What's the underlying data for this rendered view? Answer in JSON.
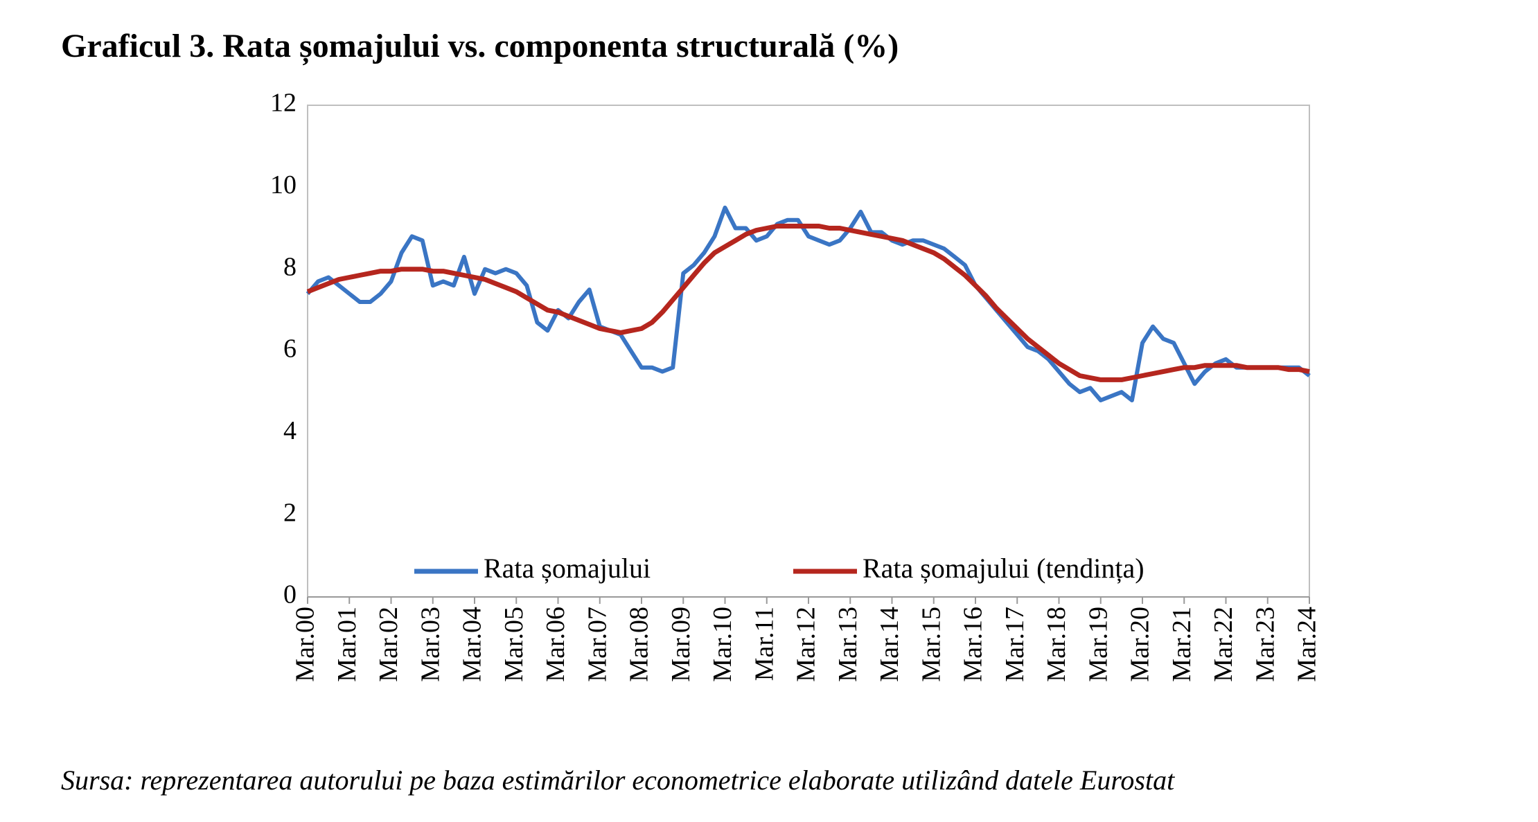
{
  "chart_data": {
    "type": "line",
    "title": "Graficul 3. Rata șomajului vs. componenta structurală (%)",
    "source": "Sursa: reprezentarea autorului pe baza estimărilor econometrice elaborate utilizând datele Eurostat",
    "categories": [
      "Mar.00",
      null,
      null,
      null,
      "Mar.01",
      null,
      null,
      null,
      "Mar.02",
      null,
      null,
      null,
      "Mar.03",
      null,
      null,
      null,
      "Mar.04",
      null,
      null,
      null,
      "Mar.05",
      null,
      null,
      null,
      "Mar.06",
      null,
      null,
      null,
      "Mar.07",
      null,
      null,
      null,
      "Mar.08",
      null,
      null,
      null,
      "Mar.09",
      null,
      null,
      null,
      "Mar.10",
      null,
      null,
      null,
      "Mar.11",
      null,
      null,
      null,
      "Mar.12",
      null,
      null,
      null,
      "Mar.13",
      null,
      null,
      null,
      "Mar.14",
      null,
      null,
      null,
      "Mar.15",
      null,
      null,
      null,
      "Mar.16",
      null,
      null,
      null,
      "Mar.17",
      null,
      null,
      null,
      "Mar.18",
      null,
      null,
      null,
      "Mar.19",
      null,
      null,
      null,
      "Mar.20",
      null,
      null,
      null,
      "Mar.21",
      null,
      null,
      null,
      "Mar.22",
      null,
      null,
      null,
      "Mar.23",
      null,
      null,
      null,
      "Mar.24"
    ],
    "series": [
      {
        "name": "Rata șomajului",
        "color": "#3a75c4",
        "values": [
          7.4,
          7.7,
          7.8,
          7.6,
          7.4,
          7.2,
          7.2,
          7.4,
          7.7,
          8.4,
          8.8,
          8.7,
          7.6,
          7.7,
          7.6,
          8.3,
          7.4,
          8.0,
          7.9,
          8.0,
          7.9,
          7.6,
          6.7,
          6.5,
          7.0,
          6.8,
          7.2,
          7.5,
          6.6,
          6.5,
          6.4,
          6.0,
          5.6,
          5.6,
          5.5,
          5.6,
          7.9,
          8.1,
          8.4,
          8.8,
          9.5,
          9.0,
          9.0,
          8.7,
          8.8,
          9.1,
          9.2,
          9.2,
          8.8,
          8.7,
          8.6,
          8.7,
          9.0,
          9.4,
          8.9,
          8.9,
          8.7,
          8.6,
          8.7,
          8.7,
          8.6,
          8.5,
          8.3,
          8.1,
          7.6,
          7.3,
          7.0,
          6.7,
          6.4,
          6.1,
          6.0,
          5.8,
          5.5,
          5.2,
          5.0,
          5.1,
          4.8,
          4.9,
          5.0,
          4.8,
          6.2,
          6.6,
          6.3,
          6.2,
          5.7,
          5.2,
          5.5,
          5.7,
          5.8,
          5.6,
          5.6,
          5.6,
          5.6,
          5.6,
          5.6,
          5.6,
          5.4
        ]
      },
      {
        "name": "Rata șomajului (tendința)",
        "color": "#b5261e",
        "values": [
          7.45,
          7.55,
          7.65,
          7.75,
          7.8,
          7.85,
          7.9,
          7.95,
          7.95,
          8.0,
          8.0,
          8.0,
          7.95,
          7.95,
          7.9,
          7.85,
          7.8,
          7.75,
          7.65,
          7.55,
          7.45,
          7.3,
          7.15,
          7.0,
          6.95,
          6.85,
          6.75,
          6.65,
          6.55,
          6.5,
          6.45,
          6.5,
          6.55,
          6.7,
          6.95,
          7.25,
          7.55,
          7.85,
          8.15,
          8.4,
          8.55,
          8.7,
          8.85,
          8.95,
          9.0,
          9.05,
          9.05,
          9.05,
          9.05,
          9.05,
          9.0,
          9.0,
          8.95,
          8.9,
          8.85,
          8.8,
          8.75,
          8.7,
          8.6,
          8.5,
          8.4,
          8.25,
          8.05,
          7.85,
          7.6,
          7.35,
          7.05,
          6.8,
          6.55,
          6.3,
          6.1,
          5.9,
          5.7,
          5.55,
          5.4,
          5.35,
          5.3,
          5.3,
          5.3,
          5.35,
          5.4,
          5.45,
          5.5,
          5.55,
          5.6,
          5.6,
          5.65,
          5.65,
          5.65,
          5.65,
          5.6,
          5.6,
          5.6,
          5.6,
          5.55,
          5.55,
          5.5
        ]
      }
    ],
    "ylim": [
      0,
      12
    ],
    "yticks": [
      0,
      2,
      4,
      6,
      8,
      10,
      12
    ],
    "grid": false,
    "legend": "bottom"
  }
}
